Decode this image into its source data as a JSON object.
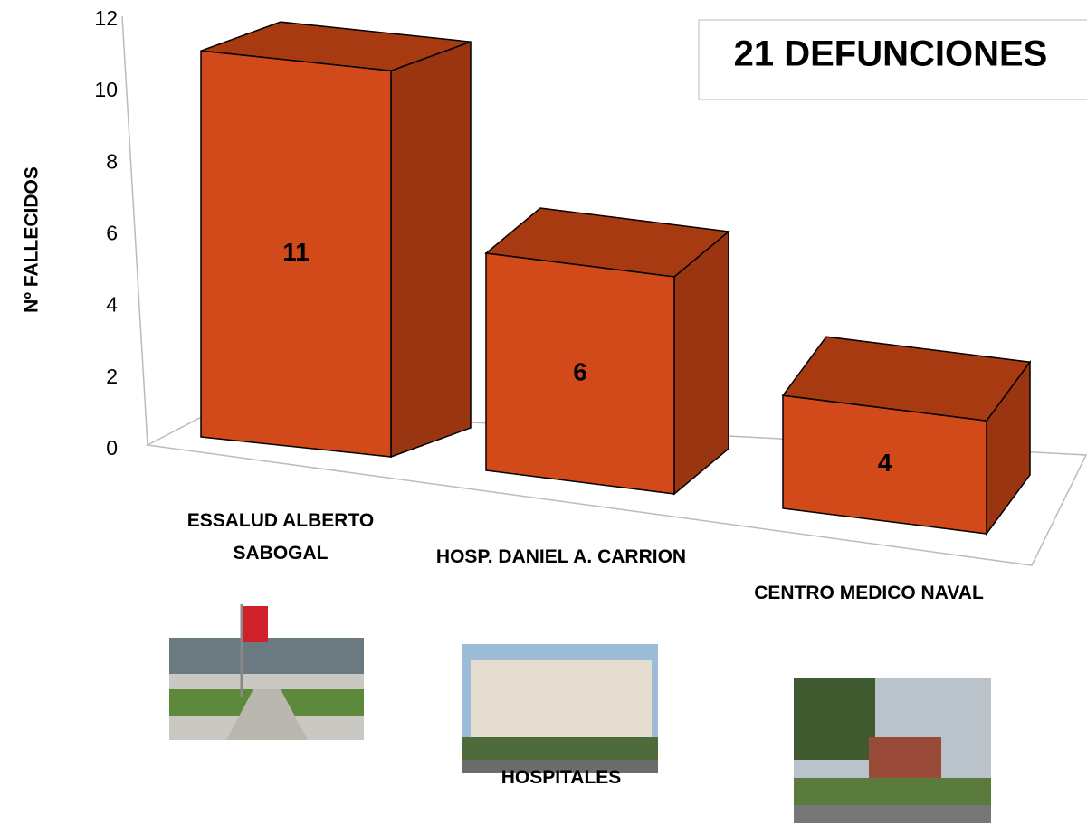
{
  "chart_data": {
    "type": "bar3d",
    "y_label": "Nº  FALLECIDOS",
    "x_label": "HOSPITALES",
    "annotation": "21 DEFUNCIONES",
    "categories": [
      "ESSALUD ALBERTO SABOGAL",
      "HOSP. DANIEL A. CARRION",
      "CENTRO MEDICO NAVAL"
    ],
    "values": [
      11,
      6,
      4
    ],
    "color": "#d2491a",
    "ylim": [
      0,
      12
    ],
    "yticks": [
      0,
      2,
      4,
      6,
      8,
      10,
      12
    ]
  }
}
